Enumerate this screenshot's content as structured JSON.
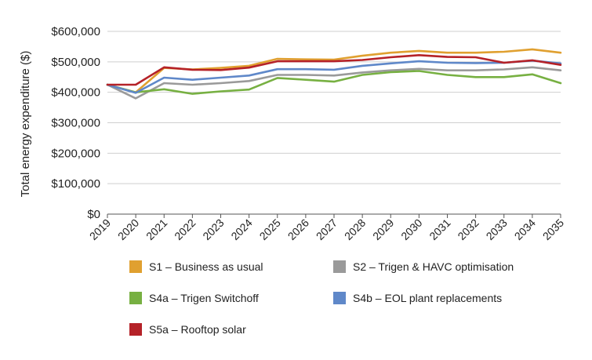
{
  "chart_data": {
    "type": "line",
    "title": "",
    "xlabel": "",
    "ylabel": "Total energy expenditure ($)",
    "categories": [
      "2019",
      "2020",
      "2021",
      "2022",
      "2023",
      "2024",
      "2025",
      "2026",
      "2027",
      "2028",
      "2029",
      "2030",
      "2031",
      "2032",
      "2033",
      "2034",
      "2035"
    ],
    "ylim": [
      0,
      600000
    ],
    "yticks": [
      {
        "value": 0,
        "label": "$0"
      },
      {
        "value": 100000,
        "label": "$100,000"
      },
      {
        "value": 200000,
        "label": "$200,000"
      },
      {
        "value": 300000,
        "label": "$300,000"
      },
      {
        "value": 400000,
        "label": "$400,000"
      },
      {
        "value": 500000,
        "label": "$500,000"
      },
      {
        "value": 600000,
        "label": "$600,000"
      }
    ],
    "grid": true,
    "legend_position": "bottom",
    "series": [
      {
        "key": "s1",
        "name": "S1 – Business as usual",
        "color": "#E0A030",
        "values": [
          425000,
          400000,
          480000,
          475000,
          480000,
          487000,
          510000,
          508000,
          507000,
          520000,
          530000,
          536000,
          530000,
          530000,
          533000,
          541000,
          530000
        ]
      },
      {
        "key": "s2",
        "name": "S2 – Trigen & HAVC optimisation",
        "color": "#9A9A9A",
        "values": [
          425000,
          380000,
          430000,
          425000,
          430000,
          437000,
          457000,
          457000,
          455000,
          465000,
          472000,
          477000,
          472000,
          472000,
          475000,
          482000,
          472000
        ]
      },
      {
        "key": "s4a",
        "name": "S4a – Trigen Switchoff",
        "color": "#77B042",
        "values": [
          425000,
          400000,
          410000,
          395000,
          403000,
          409000,
          447000,
          441000,
          435000,
          457000,
          466000,
          470000,
          457000,
          450000,
          450000,
          459000,
          430000
        ]
      },
      {
        "key": "s4b",
        "name": "S4b – EOL plant replacements",
        "color": "#5F88C9",
        "values": [
          425000,
          398000,
          448000,
          441000,
          448000,
          455000,
          476000,
          476000,
          474000,
          487000,
          495000,
          502000,
          497000,
          496000,
          497000,
          504000,
          495000
        ]
      },
      {
        "key": "s5a",
        "name": "S5a – Rooftop solar",
        "color": "#B52228",
        "values": [
          425000,
          425000,
          482000,
          474000,
          473000,
          481000,
          502000,
          502000,
          502000,
          506000,
          515000,
          522000,
          516000,
          515000,
          497000,
          505000,
          490000
        ]
      }
    ]
  }
}
